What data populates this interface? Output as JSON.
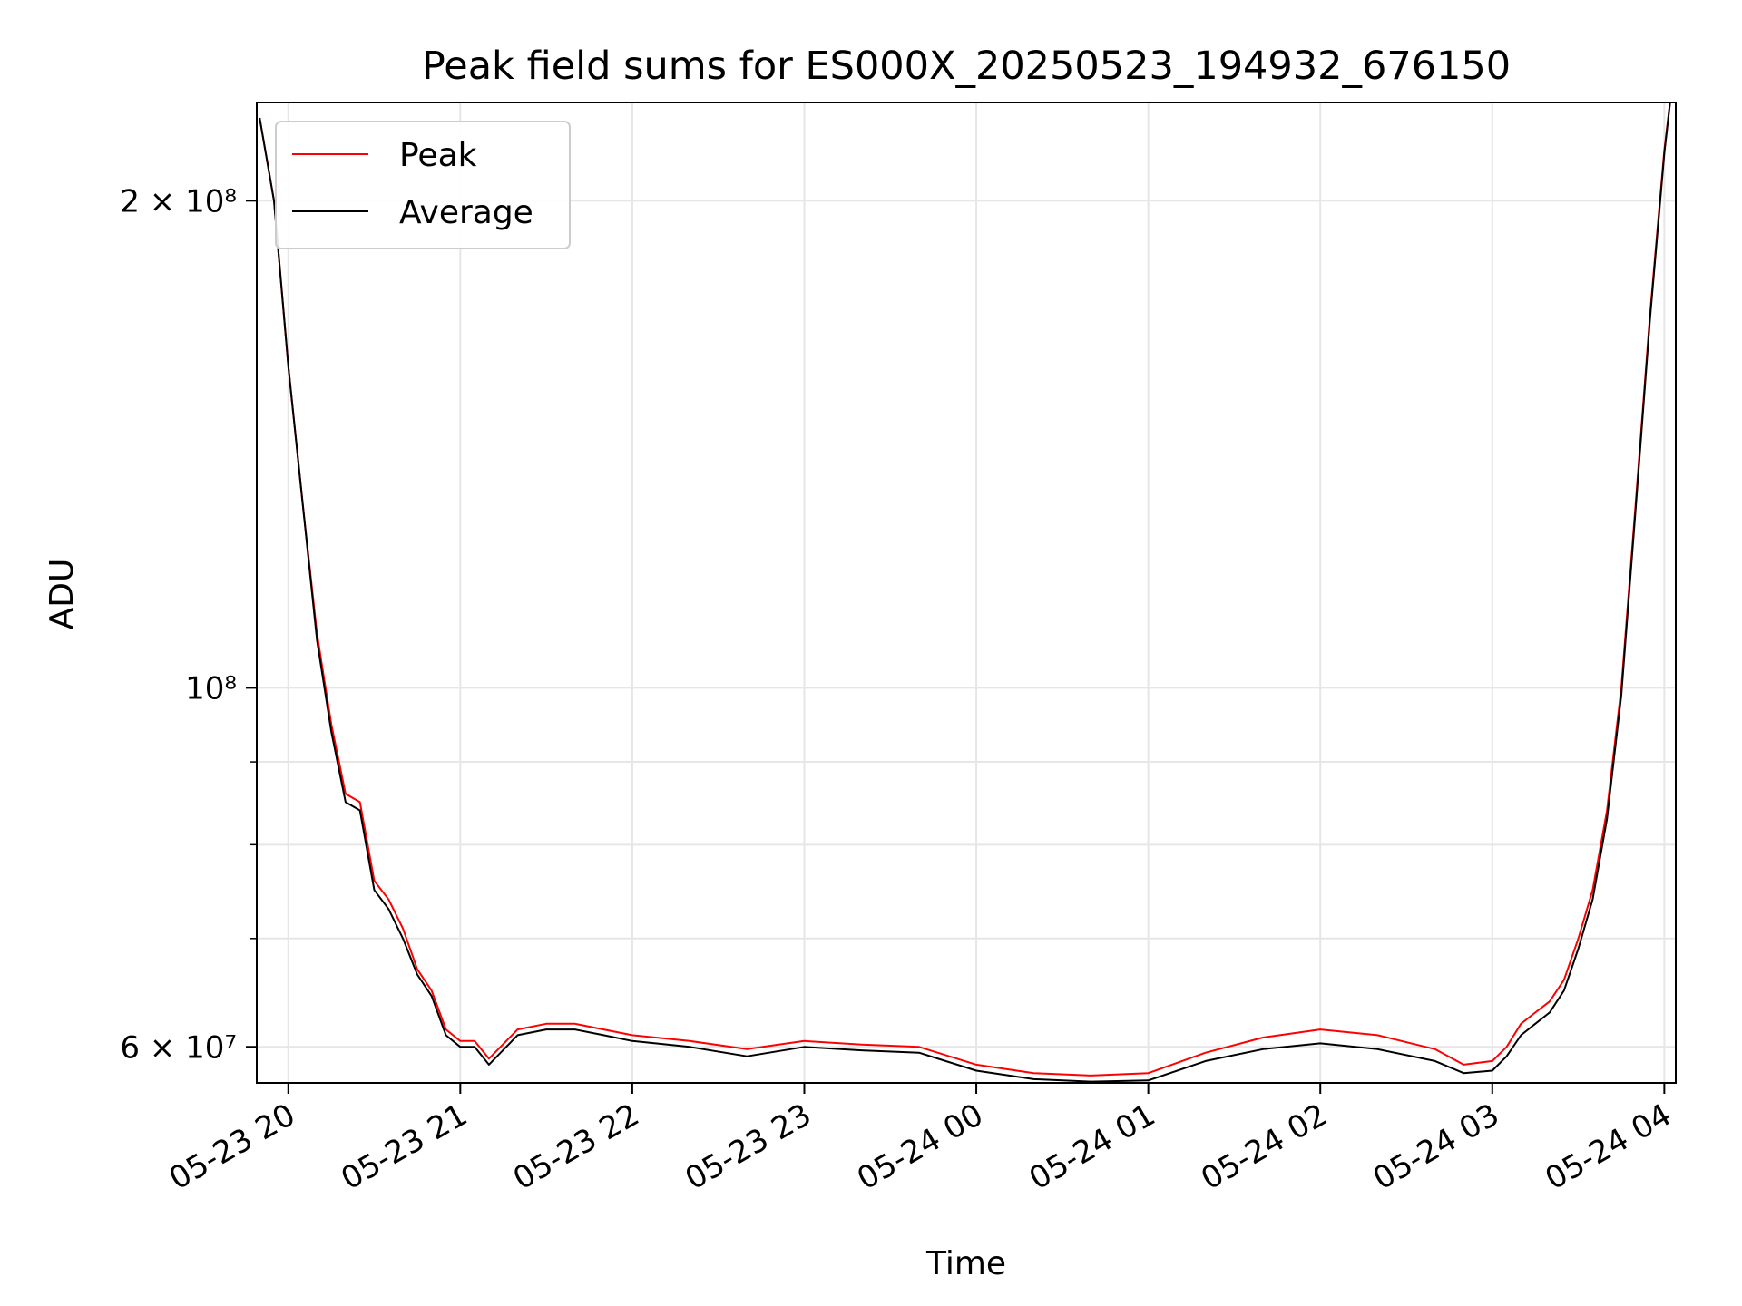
{
  "chart_data": {
    "type": "line",
    "title": "Peak field sums for ES000X_20250523_194932_676150",
    "xlabel": "Time",
    "ylabel": "ADU",
    "yscale": "log",
    "xlim": [
      "2025-05-23 19:49",
      "2025-05-24 04:04"
    ],
    "ylim": [
      57000000,
      230000000
    ],
    "grid": true,
    "legend_position": "upper-left",
    "x_ticks": [
      "05-23 20",
      "05-23 21",
      "05-23 22",
      "05-23 23",
      "05-24 00",
      "05-24 01",
      "05-24 02",
      "05-24 03",
      "05-24 04"
    ],
    "y_ticks": [
      {
        "value": 60000000,
        "label": "6 × 10⁷"
      },
      {
        "value": 100000000,
        "label": "10⁸"
      },
      {
        "value": 200000000,
        "label": "2 × 10⁸"
      }
    ],
    "x": [
      "2025-05-23 19:50",
      "2025-05-23 19:55",
      "2025-05-23 20:00",
      "2025-05-23 20:05",
      "2025-05-23 20:10",
      "2025-05-23 20:15",
      "2025-05-23 20:20",
      "2025-05-23 20:25",
      "2025-05-23 20:30",
      "2025-05-23 20:35",
      "2025-05-23 20:40",
      "2025-05-23 20:45",
      "2025-05-23 20:50",
      "2025-05-23 20:55",
      "2025-05-23 21:00",
      "2025-05-23 21:05",
      "2025-05-23 21:10",
      "2025-05-23 21:20",
      "2025-05-23 21:30",
      "2025-05-23 21:40",
      "2025-05-23 21:50",
      "2025-05-23 22:00",
      "2025-05-23 22:20",
      "2025-05-23 22:40",
      "2025-05-23 23:00",
      "2025-05-23 23:20",
      "2025-05-23 23:40",
      "2025-05-24 00:00",
      "2025-05-24 00:20",
      "2025-05-24 00:40",
      "2025-05-24 01:00",
      "2025-05-24 01:20",
      "2025-05-24 01:40",
      "2025-05-24 02:00",
      "2025-05-24 02:20",
      "2025-05-24 02:40",
      "2025-05-24 02:50",
      "2025-05-24 03:00",
      "2025-05-24 03:05",
      "2025-05-24 03:10",
      "2025-05-24 03:15",
      "2025-05-24 03:20",
      "2025-05-24 03:25",
      "2025-05-24 03:30",
      "2025-05-24 03:35",
      "2025-05-24 03:40",
      "2025-05-24 03:45",
      "2025-05-24 03:50",
      "2025-05-24 03:55",
      "2025-05-24 04:00",
      "2025-05-24 04:02"
    ],
    "series": [
      {
        "name": "Peak",
        "color": "#ff0000",
        "values": [
          225000000,
          200000000,
          158000000,
          130000000,
          108000000,
          95000000,
          86000000,
          85000000,
          76000000,
          74000000,
          71000000,
          67000000,
          65000000,
          61500000,
          60500000,
          60500000,
          59000000,
          61500000,
          62000000,
          62000000,
          61500000,
          61000000,
          60500000,
          59800000,
          60500000,
          60200000,
          60000000,
          58500000,
          57800000,
          57600000,
          57800000,
          59500000,
          60800000,
          61500000,
          61000000,
          59800000,
          58500000,
          58800000,
          60000000,
          62000000,
          63000000,
          64000000,
          66000000,
          70000000,
          75000000,
          84000000,
          100000000,
          130000000,
          170000000,
          215000000,
          230000000
        ]
      },
      {
        "name": "Average",
        "color": "#000000",
        "values": [
          225000000,
          200000000,
          158000000,
          130000000,
          107000000,
          94000000,
          85000000,
          84000000,
          75000000,
          73000000,
          70000000,
          66500000,
          64500000,
          61000000,
          60000000,
          60000000,
          58500000,
          61000000,
          61500000,
          61500000,
          61000000,
          60500000,
          60000000,
          59200000,
          60000000,
          59700000,
          59500000,
          58000000,
          57300000,
          57100000,
          57200000,
          58800000,
          59800000,
          60300000,
          59800000,
          58800000,
          57800000,
          58000000,
          59200000,
          61000000,
          62000000,
          63000000,
          65000000,
          69000000,
          74000000,
          83000000,
          99000000,
          129000000,
          169000000,
          214000000,
          230000000
        ]
      }
    ]
  }
}
